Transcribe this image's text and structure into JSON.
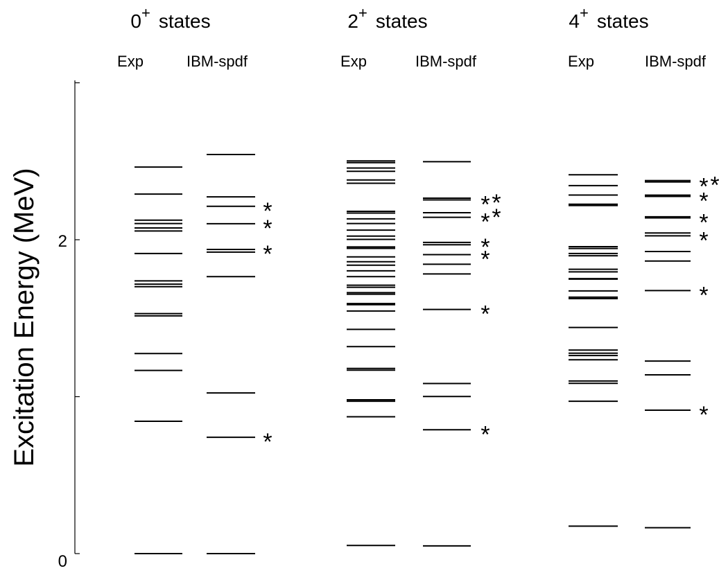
{
  "chart_data": {
    "type": "level-scheme",
    "ylabel": "Excitation Energy (MeV)",
    "yticks": [
      "0",
      "2"
    ],
    "ylim": [
      0,
      3.0
    ],
    "marker_symbol": "*",
    "column_labels": [
      "Exp",
      "IBM-spdf"
    ],
    "groups": [
      {
        "title": "0",
        "title_sup": "+",
        "title_suffix": "states",
        "exp": [
          0.0,
          0.843,
          1.167,
          1.275,
          1.515,
          1.529,
          1.701,
          1.717,
          1.738,
          1.912,
          2.056,
          2.075,
          2.103,
          2.125,
          2.291,
          2.463
        ],
        "ibm": [
          0.0,
          0.741,
          1.024,
          1.765,
          1.921,
          1.938,
          2.102,
          2.213,
          2.273,
          2.543
        ],
        "ibm_starred": [
          0.741,
          1.938,
          2.102,
          2.213
        ]
      },
      {
        "title": "2",
        "title_sup": "+",
        "title_suffix": "states",
        "exp": [
          0.052,
          0.872,
          0.971,
          0.98,
          1.169,
          1.18,
          1.319,
          1.429,
          1.546,
          1.586,
          1.593,
          1.653,
          1.663,
          1.697,
          1.71,
          1.765,
          1.802,
          1.838,
          1.86,
          1.891,
          1.945,
          1.954,
          2.002,
          2.023,
          2.061,
          2.103,
          2.133,
          2.17,
          2.181,
          2.36,
          2.381,
          2.436,
          2.457,
          2.491,
          2.502
        ],
        "ibm": [
          0.049,
          0.789,
          1.001,
          1.084,
          1.556,
          1.782,
          1.844,
          1.905,
          1.968,
          1.983,
          2.143,
          2.172,
          2.254,
          2.265,
          2.497
        ],
        "ibm_starred": [
          0.789,
          1.556,
          1.905,
          1.983,
          2.143,
          2.172,
          2.254,
          2.265
        ]
      },
      {
        "title": "4",
        "title_sup": "+",
        "title_suffix": "states",
        "exp": [
          0.175,
          0.971,
          1.085,
          1.1,
          1.235,
          1.262,
          1.277,
          1.297,
          1.441,
          1.625,
          1.634,
          1.674,
          1.749,
          1.752,
          1.795,
          1.812,
          1.898,
          1.912,
          1.944,
          1.956,
          2.218,
          2.226,
          2.285,
          2.345,
          2.414
        ],
        "ibm": [
          0.165,
          0.914,
          1.139,
          1.227,
          1.676,
          1.864,
          1.925,
          2.025,
          2.043,
          2.139,
          2.146,
          2.276,
          2.284,
          2.368,
          2.377
        ],
        "ibm_starred": [
          0.914,
          1.676,
          2.025,
          2.139,
          2.276,
          2.368,
          2.377
        ]
      }
    ]
  }
}
